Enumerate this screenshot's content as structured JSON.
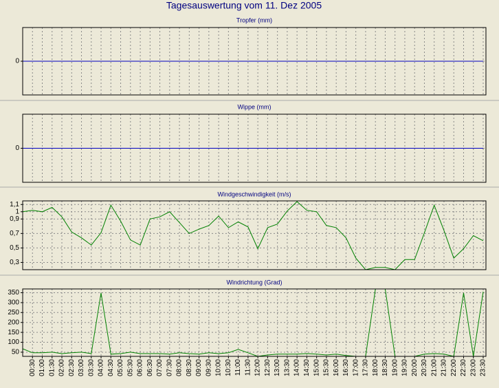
{
  "title": "Tagesauswertung vom 11. Dez 2005",
  "chart_data": [
    {
      "type": "line",
      "title": "Tropfer (mm)",
      "ylim": [
        -1,
        1
      ],
      "yticks": [
        0
      ],
      "grid": true,
      "series": [
        {
          "color": "#0000c0",
          "values": [
            0,
            0,
            0,
            0,
            0,
            0,
            0,
            0,
            0,
            0,
            0,
            0,
            0,
            0,
            0,
            0,
            0,
            0,
            0,
            0,
            0,
            0,
            0,
            0,
            0,
            0,
            0,
            0,
            0,
            0,
            0,
            0,
            0,
            0,
            0,
            0,
            0,
            0,
            0,
            0,
            0,
            0,
            0,
            0,
            0,
            0,
            0,
            0
          ]
        }
      ]
    },
    {
      "type": "line",
      "title": "Wippe (mm)",
      "ylim": [
        -1,
        1
      ],
      "yticks": [
        0
      ],
      "grid": true,
      "series": [
        {
          "color": "#0000c0",
          "values": [
            0,
            0,
            0,
            0,
            0,
            0,
            0,
            0,
            0,
            0,
            0,
            0,
            0,
            0,
            0,
            0,
            0,
            0,
            0,
            0,
            0,
            0,
            0,
            0,
            0,
            0,
            0,
            0,
            0,
            0,
            0,
            0,
            0,
            0,
            0,
            0,
            0,
            0,
            0,
            0,
            0,
            0,
            0,
            0,
            0,
            0,
            0,
            0
          ]
        }
      ]
    },
    {
      "type": "line",
      "title": "Windgeschwindigkeit (m/s)",
      "ylim": [
        0.2,
        1.15
      ],
      "yticks": [
        {
          "value": 1.1,
          "label": "1,1"
        },
        1,
        {
          "value": 0.9,
          "label": "0,9"
        },
        {
          "value": 0.7,
          "label": "0,7"
        },
        {
          "value": 0.5,
          "label": "0,5"
        },
        {
          "value": 0.3,
          "label": "0,3"
        }
      ],
      "grid": true,
      "series": [
        {
          "color": "#008000",
          "values": [
            1.0,
            1.02,
            1.0,
            1.06,
            0.93,
            0.72,
            0.64,
            0.54,
            0.71,
            1.09,
            0.87,
            0.61,
            0.54,
            0.9,
            0.93,
            1.0,
            0.85,
            0.7,
            0.76,
            0.81,
            0.94,
            0.78,
            0.86,
            0.79,
            0.49,
            0.78,
            0.83,
            1.01,
            1.14,
            1.02,
            1.0,
            0.81,
            0.78,
            0.64,
            0.36,
            0.2,
            0.23,
            0.23,
            0.2,
            0.34,
            0.34,
            0.71,
            1.09,
            0.74,
            0.36,
            0.49,
            0.67,
            0.6
          ]
        }
      ]
    },
    {
      "type": "line",
      "title": "Windrichtung (Grad)",
      "ylim": [
        29,
        369
      ],
      "yticks": [
        350,
        300,
        250,
        200,
        150,
        100,
        50
      ],
      "grid": true,
      "categories": [
        null,
        "00:30",
        "01:00",
        "01:30",
        "02:00",
        "02:30",
        "03:00",
        "03:30",
        "04:00",
        "04:30",
        "05:00",
        "05:30",
        "06:00",
        "06:30",
        "07:00",
        "07:30",
        "08:00",
        "08:30",
        "09:00",
        "09:30",
        "10:00",
        "10:30",
        "11:00",
        "11:30",
        "12:00",
        "12:30",
        "13:00",
        "13:30",
        "14:00",
        "14:30",
        "15:00",
        "15:30",
        "16:00",
        "16:30",
        "17:00",
        "17:30",
        "18:00",
        "18:30",
        "19:00",
        "19:30",
        "20:00",
        "20:30",
        "21:00",
        "21:30",
        "22:00",
        "22:30",
        "23:00",
        "23:30"
      ],
      "series": [
        {
          "color": "#008000",
          "values": [
            67,
            47,
            47,
            50,
            43,
            47,
            50,
            43,
            349,
            40,
            43,
            50,
            43,
            43,
            43,
            40,
            47,
            43,
            40,
            47,
            43,
            47,
            64,
            47,
            29,
            36,
            40,
            40,
            40,
            43,
            40,
            36,
            40,
            33,
            29,
            29,
            369,
            369,
            29,
            29,
            29,
            40,
            43,
            40,
            29,
            349,
            29,
            355
          ]
        }
      ]
    }
  ]
}
